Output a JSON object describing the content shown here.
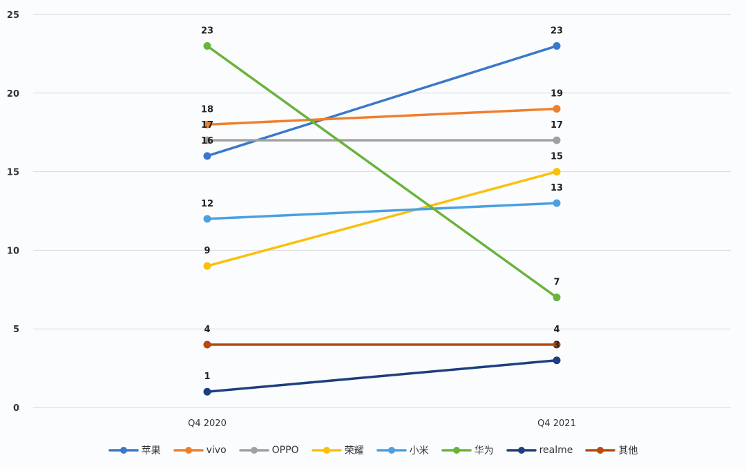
{
  "chart_data": {
    "type": "line",
    "title": "",
    "xlabel": "",
    "ylabel": "",
    "categories": [
      "Q4 2020",
      "Q4 2021"
    ],
    "ylim": [
      0,
      25
    ],
    "yticks": [
      0,
      5,
      10,
      15,
      20,
      25
    ],
    "grid": true,
    "legend_position": "bottom",
    "series": [
      {
        "name": "苹果",
        "color": "#3a78c9",
        "values": [
          16,
          23
        ]
      },
      {
        "name": "vivo",
        "color": "#f07f2b",
        "values": [
          18,
          19
        ]
      },
      {
        "name": "OPPO",
        "color": "#a0a0a0",
        "values": [
          17,
          17
        ]
      },
      {
        "name": "荣耀",
        "color": "#fbc00a",
        "values": [
          9,
          15
        ]
      },
      {
        "name": "小米",
        "color": "#4aa0e0",
        "values": [
          12,
          13
        ]
      },
      {
        "name": "华为",
        "color": "#6ab33c",
        "values": [
          23,
          7
        ]
      },
      {
        "name": "realme",
        "color": "#1d3f7f",
        "values": [
          1,
          3
        ]
      },
      {
        "name": "其他",
        "color": "#b54a12",
        "values": [
          4,
          4
        ]
      }
    ]
  }
}
